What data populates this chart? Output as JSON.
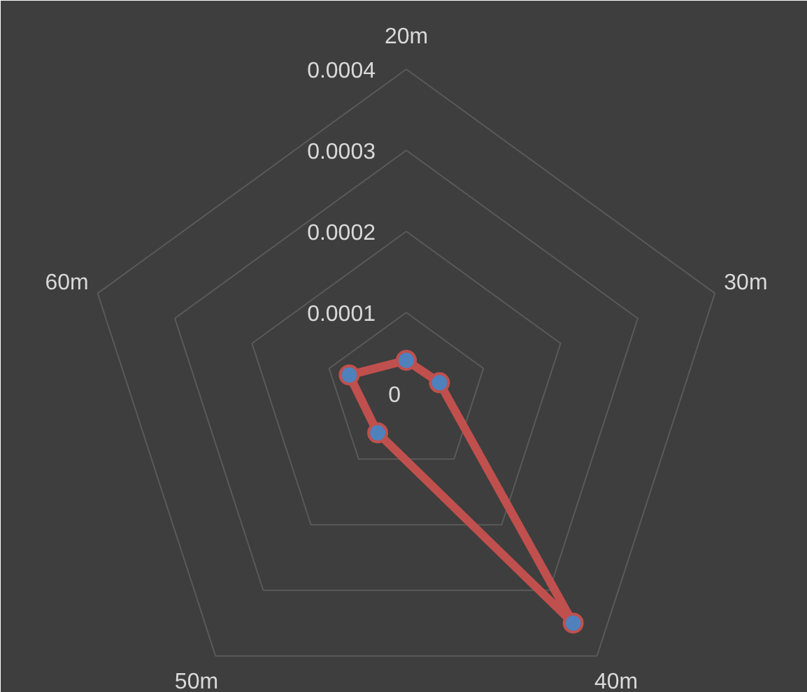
{
  "chart_data": {
    "type": "radar",
    "categories": [
      "20m",
      "30m",
      "40m",
      "50m",
      "60m"
    ],
    "series": [
      {
        "color": "#c0504d",
        "values": [
          4.1e-05,
          4.3e-05,
          0.00035,
          6e-05,
          7.4e-05
        ]
      }
    ],
    "ylim": [
      0,
      0.0004
    ],
    "yticks": [
      0,
      0.0001,
      0.0002,
      0.0003,
      0.0004
    ],
    "grid": true,
    "marker": "circle",
    "line_style": "solid"
  }
}
